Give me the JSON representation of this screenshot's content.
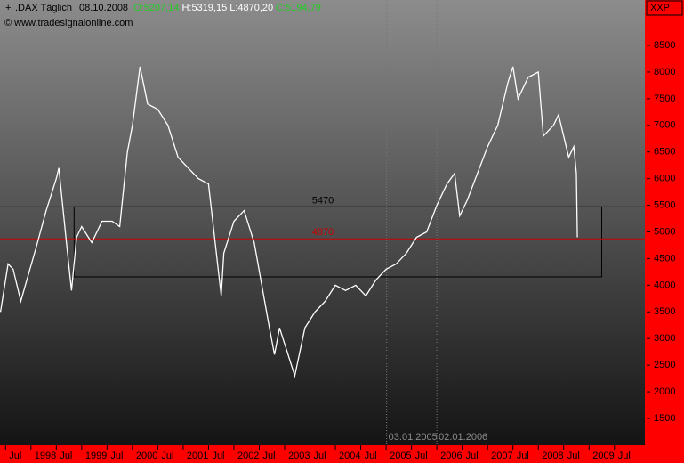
{
  "chart_data": {
    "type": "line",
    "symbol": ".DAX Täglich",
    "date": "08.10.2008",
    "quote": [
      {
        "label": "O:5207,14",
        "color": "#22cc22"
      },
      {
        "label": "H:5319,15",
        "color": "#ffffff"
      },
      {
        "label": "L:4870,20",
        "color": "#ffffff"
      },
      {
        "label": "C:5194,79",
        "color": "#22cc22"
      }
    ],
    "source": "© www.tradesignalonline.com",
    "axis_badge": "XXP",
    "color": "#ffffff",
    "x": [
      1997.4,
      1997.55,
      1997.65,
      1997.8,
      1997.95,
      1998.1,
      1998.3,
      1998.5,
      1998.55,
      1998.7,
      1998.8,
      1998.9,
      1999.0,
      1999.2,
      1999.4,
      1999.6,
      1999.75,
      1999.9,
      2000.0,
      2000.15,
      2000.3,
      2000.5,
      2000.7,
      2000.9,
      2001.1,
      2001.3,
      2001.5,
      2001.75,
      2001.8,
      2002.0,
      2002.2,
      2002.4,
      2002.55,
      2002.7,
      2002.8,
      2002.9,
      2003.0,
      2003.2,
      2003.4,
      2003.6,
      2003.8,
      2004.0,
      2004.2,
      2004.4,
      2004.6,
      2004.8,
      2005.0,
      2005.2,
      2005.4,
      2005.6,
      2005.8,
      2006.0,
      2006.2,
      2006.35,
      2006.45,
      2006.6,
      2006.8,
      2007.0,
      2007.2,
      2007.4,
      2007.5,
      2007.6,
      2007.8,
      2008.0,
      2008.1,
      2008.3,
      2008.4,
      2008.6,
      2008.7,
      2008.75,
      2008.77
    ],
    "values": [
      3500,
      4400,
      4300,
      3700,
      4200,
      4700,
      5400,
      6000,
      6200,
      4800,
      3900,
      4900,
      5100,
      4800,
      5200,
      5200,
      5100,
      6500,
      7000,
      8100,
      7400,
      7300,
      7000,
      6400,
      6200,
      6000,
      5900,
      3800,
      4600,
      5200,
      5400,
      4800,
      4000,
      3200,
      2700,
      3200,
      2900,
      2300,
      3200,
      3500,
      3700,
      4000,
      3900,
      4000,
      3800,
      4100,
      4300,
      4400,
      4600,
      4900,
      5000,
      5500,
      5900,
      6100,
      5300,
      5600,
      6100,
      6600,
      7000,
      7800,
      8100,
      7500,
      7900,
      8000,
      6800,
      7000,
      7200,
      6400,
      6600,
      6100,
      4900
    ],
    "xlim": [
      1997.39,
      2010.1
    ],
    "ylim": [
      999,
      9352
    ],
    "yticks": [
      1500,
      2000,
      2500,
      3000,
      3500,
      4000,
      4500,
      5000,
      5500,
      6000,
      6500,
      7000,
      7500,
      8000,
      8500
    ],
    "xticks": [
      {
        "value": 1997.5,
        "label": "Jul"
      },
      {
        "value": 1998,
        "label": "1998"
      },
      {
        "value": 1998.5,
        "label": "Jul"
      },
      {
        "value": 1999,
        "label": "1999"
      },
      {
        "value": 1999.5,
        "label": "Jul"
      },
      {
        "value": 2000,
        "label": "2000"
      },
      {
        "value": 2000.5,
        "label": "Jul"
      },
      {
        "value": 2001,
        "label": "2001"
      },
      {
        "value": 2001.5,
        "label": "Jul"
      },
      {
        "value": 2002,
        "label": "2002"
      },
      {
        "value": 2002.5,
        "label": "Jul"
      },
      {
        "value": 2003,
        "label": "2003"
      },
      {
        "value": 2003.5,
        "label": "Jul"
      },
      {
        "value": 2004,
        "label": "2004"
      },
      {
        "value": 2004.5,
        "label": "Jul"
      },
      {
        "value": 2005,
        "label": "2005"
      },
      {
        "value": 2005.5,
        "label": "Jul"
      },
      {
        "value": 2006,
        "label": "2006"
      },
      {
        "value": 2006.5,
        "label": "Jul"
      },
      {
        "value": 2007,
        "label": "2007"
      },
      {
        "value": 2007.5,
        "label": "Jul"
      },
      {
        "value": 2008,
        "label": "2008"
      },
      {
        "value": 2008.5,
        "label": "Jul"
      },
      {
        "value": 2009,
        "label": "2009"
      },
      {
        "value": 2009.5,
        "label": "Jul"
      }
    ],
    "levels": [
      {
        "value": 5470,
        "color": "#000000"
      },
      {
        "value": 4870,
        "color": "#cc0000"
      }
    ],
    "box": {
      "x": [
        1998.85,
        2009.25
      ],
      "y": [
        4157,
        5470
      ]
    },
    "vlines": [
      {
        "value": 2005.01,
        "label": "03.01.2005"
      },
      {
        "value": 2006.0,
        "label": "02.01.2006"
      }
    ]
  }
}
